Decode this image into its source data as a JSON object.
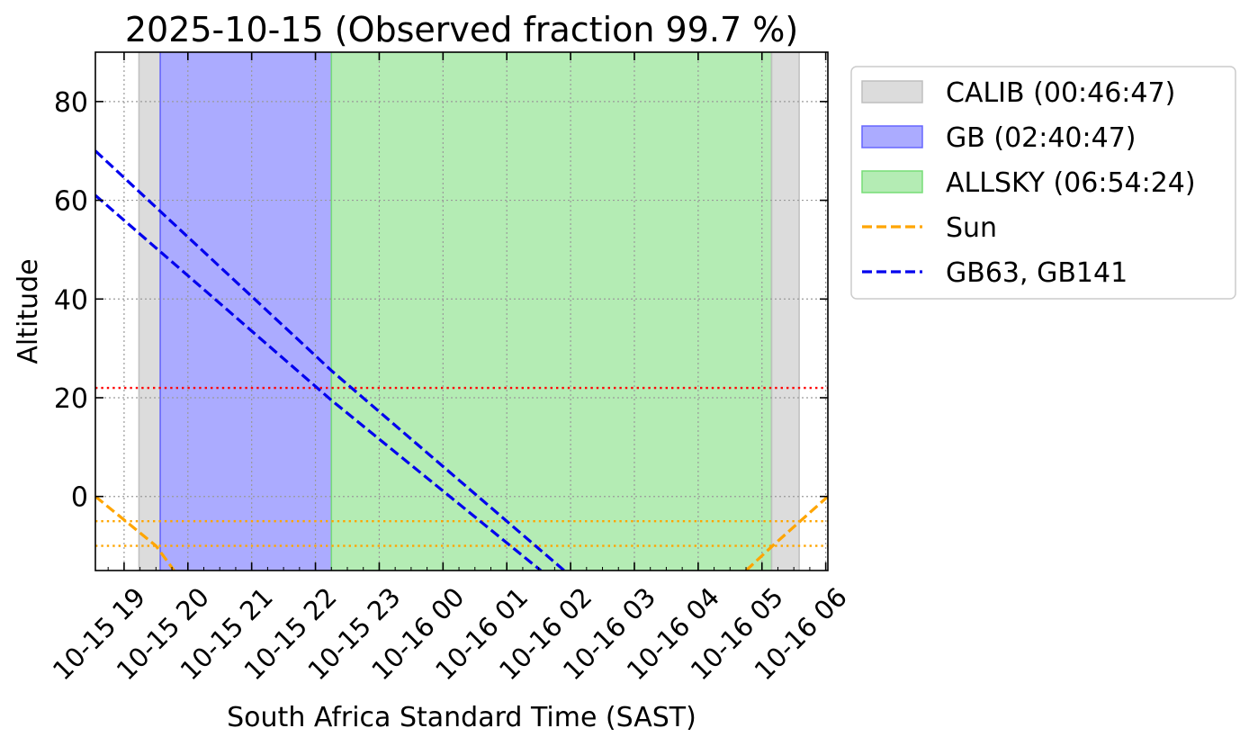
{
  "chart_data": {
    "type": "line",
    "title": "2025-10-15 (Observed fraction 99.7 %)",
    "xlabel": "South Africa Standard Time (SAST)",
    "ylabel": "Altitude",
    "xlim": [
      "2025-10-15 18:33",
      "2025-10-16 06:02"
    ],
    "ylim": [
      -15,
      90
    ],
    "x_ticks": [
      {
        "t": "2025-10-15 19:00",
        "label": "10-15 19"
      },
      {
        "t": "2025-10-15 20:00",
        "label": "10-15 20"
      },
      {
        "t": "2025-10-15 21:00",
        "label": "10-15 21"
      },
      {
        "t": "2025-10-15 22:00",
        "label": "10-15 22"
      },
      {
        "t": "2025-10-15 23:00",
        "label": "10-15 23"
      },
      {
        "t": "2025-10-16 00:00",
        "label": "10-16 00"
      },
      {
        "t": "2025-10-16 01:00",
        "label": "10-16 01"
      },
      {
        "t": "2025-10-16 02:00",
        "label": "10-16 02"
      },
      {
        "t": "2025-10-16 03:00",
        "label": "10-16 03"
      },
      {
        "t": "2025-10-16 04:00",
        "label": "10-16 04"
      },
      {
        "t": "2025-10-16 05:00",
        "label": "10-16 05"
      },
      {
        "t": "2025-10-16 06:00",
        "label": "10-16 06"
      }
    ],
    "y_ticks": [
      0,
      20,
      40,
      60,
      80
    ],
    "grid": true,
    "legend_position": "outside-right-top",
    "spans": [
      {
        "name": "CALIB (00:46:47)",
        "color": "#bfbfbf",
        "start": "2025-10-15 19:14",
        "end": "2025-10-15 19:34"
      },
      {
        "name": "GB (02:40:47)",
        "color": "#6666ff",
        "start": "2025-10-15 19:34",
        "end": "2025-10-15 22:15"
      },
      {
        "name": "ALLSKY (06:54:24)",
        "color": "#77dd77",
        "start": "2025-10-15 22:15",
        "end": "2025-10-16 05:09"
      },
      {
        "name": "CALIB (00:46:47)",
        "color": "#bfbfbf",
        "start": "2025-10-16 05:09",
        "end": "2025-10-16 05:35"
      }
    ],
    "series": [
      {
        "name": "Sun",
        "color": "#ffa500",
        "style": "dashed",
        "segments": [
          {
            "x": [
              "2025-10-15 18:33",
              "2025-10-15 19:30",
              "2025-10-15 19:47"
            ],
            "y": [
              0,
              -10,
              -15
            ]
          },
          {
            "x": [
              "2025-10-16 04:45",
              "2025-10-16 05:10",
              "2025-10-16 06:02"
            ],
            "y": [
              -15,
              -10,
              0
            ]
          }
        ]
      },
      {
        "name": "GB63, GB141",
        "color": "#0000ee",
        "style": "dashed",
        "segments": [
          {
            "x": [
              "2025-10-15 18:33",
              "2025-10-15 22:15",
              "2025-10-16 01:54"
            ],
            "y": [
              70,
              25.5,
              -15
            ]
          },
          {
            "x": [
              "2025-10-15 18:33",
              "2025-10-15 22:15",
              "2025-10-16 01:32"
            ],
            "y": [
              61,
              19.5,
              -15
            ]
          }
        ]
      }
    ],
    "horizontal_lines": [
      {
        "y": 22,
        "color": "#ff0000",
        "style": "dotted"
      },
      {
        "y": -5,
        "color": "#ffa500",
        "style": "dotted"
      },
      {
        "y": -10,
        "color": "#ffa500",
        "style": "dotted"
      }
    ],
    "legend": [
      {
        "label": "CALIB (00:46:47)",
        "kind": "patch",
        "color": "#bfbfbf"
      },
      {
        "label": "GB (02:40:47)",
        "kind": "patch",
        "color": "#6666ff"
      },
      {
        "label": "ALLSKY (06:54:24)",
        "kind": "patch",
        "color": "#77dd77"
      },
      {
        "label": "Sun",
        "kind": "line",
        "color": "#ffa500"
      },
      {
        "label": "GB63, GB141",
        "kind": "line",
        "color": "#0000ee"
      }
    ]
  }
}
